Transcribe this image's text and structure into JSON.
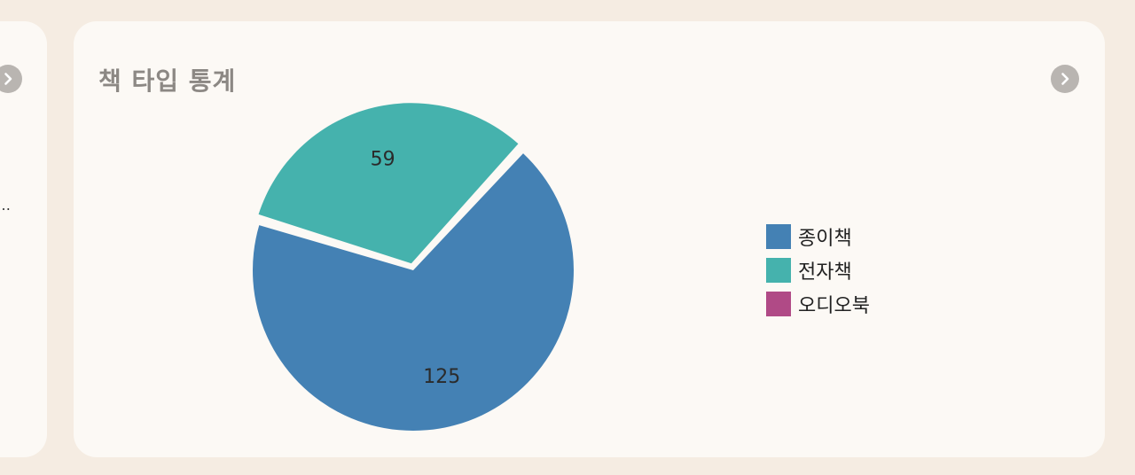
{
  "left_card": {
    "ellipsis": "…"
  },
  "main_card": {
    "title": "책 타입 통계"
  },
  "icons": {
    "left_nav": "chevron-right-icon",
    "main_nav": "chevron-right-icon"
  },
  "chart_data": {
    "type": "pie",
    "title": "책 타입 통계",
    "legend_position": "right",
    "slices": [
      {
        "label": "종이책",
        "value": 125,
        "color": "#4481b4"
      },
      {
        "label": "전자책",
        "value": 59,
        "color": "#45b2ad"
      },
      {
        "label": "오디오북",
        "value": 0,
        "color": "#b04a86"
      }
    ],
    "exploded_slice": "전자책",
    "data_labels_shown": true
  }
}
